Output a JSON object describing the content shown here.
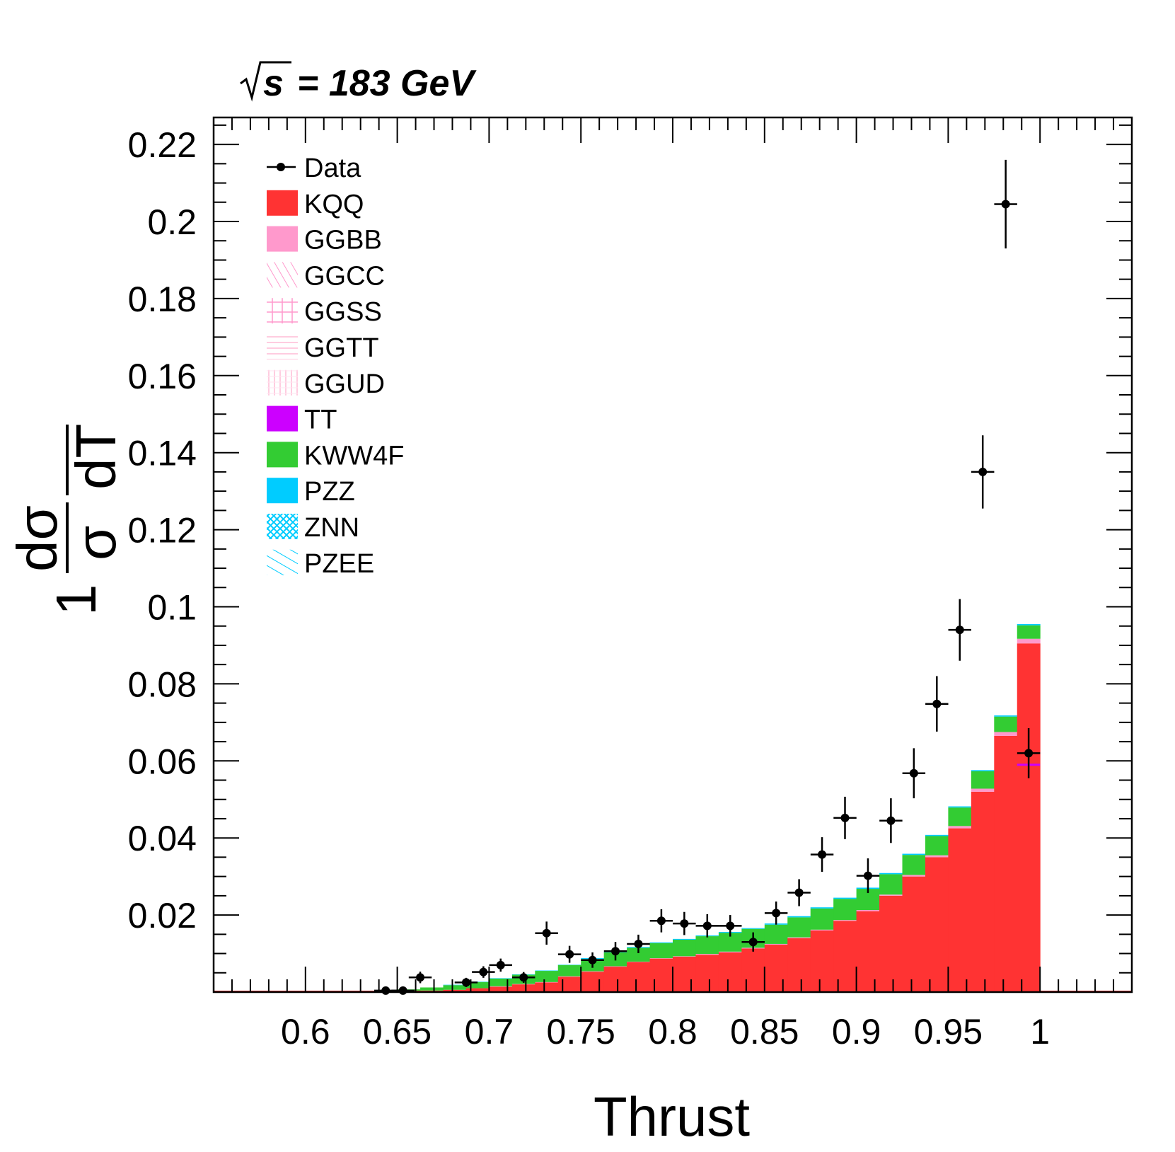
{
  "chart_data": {
    "type": "bar",
    "title": "= 183 GeV",
    "title_prefix": "√s",
    "xlabel": "Thrust",
    "ylabel_numerator": "1 dσ",
    "ylabel_one": "1",
    "ylabel_sigma": "σ",
    "ylabel_dsigma": "dσ",
    "ylabel_dT": "dT",
    "xlim": [
      0.55,
      1.05
    ],
    "ylim": [
      0,
      0.227
    ],
    "x_ticks": [
      {
        "value": 0.6,
        "label": "0.6"
      },
      {
        "value": 0.65,
        "label": "0.65"
      },
      {
        "value": 0.7,
        "label": "0.7"
      },
      {
        "value": 0.75,
        "label": "0.75"
      },
      {
        "value": 0.8,
        "label": "0.8"
      },
      {
        "value": 0.85,
        "label": "0.85"
      },
      {
        "value": 0.9,
        "label": "0.9"
      },
      {
        "value": 0.95,
        "label": "0.95"
      },
      {
        "value": 1.0,
        "label": "1"
      }
    ],
    "y_ticks": [
      {
        "value": 0.02,
        "label": "0.02"
      },
      {
        "value": 0.04,
        "label": "0.04"
      },
      {
        "value": 0.06,
        "label": "0.06"
      },
      {
        "value": 0.08,
        "label": "0.08"
      },
      {
        "value": 0.1,
        "label": "0.1"
      },
      {
        "value": 0.12,
        "label": "0.12"
      },
      {
        "value": 0.14,
        "label": "0.14"
      },
      {
        "value": 0.16,
        "label": "0.16"
      },
      {
        "value": 0.18,
        "label": "0.18"
      },
      {
        "value": 0.2,
        "label": "0.2"
      },
      {
        "value": 0.22,
        "label": "0.22"
      }
    ],
    "legend_position": "top-left",
    "legend": [
      {
        "name": "Data",
        "style": "marker",
        "color": "#000000"
      },
      {
        "name": "KQQ",
        "style": "fill",
        "color": "#ff3333"
      },
      {
        "name": "GGBB",
        "style": "fill",
        "color": "#ff99cc"
      },
      {
        "name": "GGCC",
        "style": "hatch-diag",
        "color": "#ff99cc"
      },
      {
        "name": "GGSS",
        "style": "hatch-cross",
        "color": "#ff99cc"
      },
      {
        "name": "GGTT",
        "style": "hatch-horiz",
        "color": "#ffcce0"
      },
      {
        "name": "GGUD",
        "style": "hatch-vert",
        "color": "#ffcce0"
      },
      {
        "name": "TT",
        "style": "fill",
        "color": "#cc00ff"
      },
      {
        "name": "KWW4F",
        "style": "fill",
        "color": "#33cc33"
      },
      {
        "name": "PZZ",
        "style": "fill",
        "color": "#00ccff"
      },
      {
        "name": "ZNN",
        "style": "hatch-xx",
        "color": "#00ccff"
      },
      {
        "name": "PZEE",
        "style": "hatch-diag",
        "color": "#00ccff"
      }
    ],
    "bins": [
      {
        "x0": 0.6,
        "x1": 0.6125,
        "kqq": 0.0,
        "other": 0.0
      },
      {
        "x0": 0.6125,
        "x1": 0.625,
        "kqq": 0.0,
        "other": 0.0
      },
      {
        "x0": 0.625,
        "x1": 0.6375,
        "kqq": 0.0001,
        "other": 0.0001
      },
      {
        "x0": 0.6375,
        "x1": 0.65,
        "kqq": 0.0001,
        "other": 0.0002
      },
      {
        "x0": 0.65,
        "x1": 0.6625,
        "kqq": 0.0002,
        "other": 0.0004
      },
      {
        "x0": 0.6625,
        "x1": 0.675,
        "kqq": 0.0004,
        "other": 0.0007
      },
      {
        "x0": 0.675,
        "x1": 0.6875,
        "kqq": 0.0006,
        "other": 0.001
      },
      {
        "x0": 0.6875,
        "x1": 0.7,
        "kqq": 0.001,
        "other": 0.0015
      },
      {
        "x0": 0.7,
        "x1": 0.7125,
        "kqq": 0.0015,
        "other": 0.002
      },
      {
        "x0": 0.7125,
        "x1": 0.725,
        "kqq": 0.002,
        "other": 0.0025
      },
      {
        "x0": 0.725,
        "x1": 0.7375,
        "kqq": 0.003,
        "other": 0.003
      },
      {
        "x0": 0.7375,
        "x1": 0.75,
        "kqq": 0.004,
        "other": 0.0035
      },
      {
        "x0": 0.75,
        "x1": 0.7625,
        "kqq": 0.005,
        "other": 0.004
      },
      {
        "x0": 0.7625,
        "x1": 0.775,
        "kqq": 0.006,
        "other": 0.0045
      },
      {
        "x0": 0.775,
        "x1": 0.7875,
        "kqq": 0.0075,
        "other": 0.004
      },
      {
        "x0": 0.7875,
        "x1": 0.8,
        "kqq": 0.008,
        "other": 0.0045
      },
      {
        "x0": 0.8,
        "x1": 0.8125,
        "kqq": 0.009,
        "other": 0.0045
      },
      {
        "x0": 0.8125,
        "x1": 0.825,
        "kqq": 0.0095,
        "other": 0.005
      },
      {
        "x0": 0.825,
        "x1": 0.8375,
        "kqq": 0.01,
        "other": 0.005
      },
      {
        "x0": 0.8375,
        "x1": 0.85,
        "kqq": 0.011,
        "other": 0.0045
      },
      {
        "x0": 0.85,
        "x1": 0.8625,
        "kqq": 0.012,
        "other": 0.0045
      },
      {
        "x0": 0.8625,
        "x1": 0.875,
        "kqq": 0.013,
        "other": 0.005
      },
      {
        "x0": 0.875,
        "x1": 0.8875,
        "kqq": 0.015,
        "other": 0.005
      },
      {
        "x0": 0.8875,
        "x1": 0.9,
        "kqq": 0.018,
        "other": 0.0045
      },
      {
        "x0": 0.9,
        "x1": 0.9125,
        "kqq": 0.021,
        "other": 0.0045
      },
      {
        "x0": 0.9125,
        "x1": 0.925,
        "kqq": 0.025,
        "other": 0.005
      },
      {
        "x0": 0.925,
        "x1": 0.9375,
        "kqq": 0.03,
        "other": 0.005
      },
      {
        "x0": 0.9375,
        "x1": 0.95,
        "kqq": 0.036,
        "other": 0.005
      },
      {
        "x0": 0.95,
        "x1": 0.9625,
        "kqq": 0.044,
        "other": 0.0045
      },
      {
        "x0": 0.9625,
        "x1": 0.975,
        "kqq": 0.054,
        "other": 0.0045
      },
      {
        "x0": 0.975,
        "x1": 0.9875,
        "kqq": 0.069,
        "other": 0.004
      },
      {
        "x0": 0.9875,
        "x1": 1.0,
        "kqq": 0.09,
        "other": 0.0035
      }
    ],
    "mc_bins": [
      {
        "x0": 0.6,
        "x1": 0.612,
        "kqq": 0.0,
        "kww": 0.0
      },
      {
        "x0": 0.612,
        "x1": 0.625,
        "kqq": 0.0,
        "kww": 0.0
      },
      {
        "x0": 0.625,
        "x1": 0.637,
        "kqq": 0.0,
        "kww": 0.0002
      },
      {
        "x0": 0.637,
        "x1": 0.65,
        "kqq": 0.0001,
        "kww": 0.0003
      },
      {
        "x0": 0.65,
        "x1": 0.662,
        "kqq": 0.0002,
        "kww": 0.0005
      },
      {
        "x0": 0.662,
        "x1": 0.675,
        "kqq": 0.0003,
        "kww": 0.0008
      },
      {
        "x0": 0.675,
        "x1": 0.687,
        "kqq": 0.0005,
        "kww": 0.0012
      },
      {
        "x0": 0.687,
        "x1": 0.7,
        "kqq": 0.0008,
        "kww": 0.0016
      },
      {
        "x0": 0.7,
        "x1": 0.712,
        "kqq": 0.0012,
        "kww": 0.002
      },
      {
        "x0": 0.712,
        "x1": 0.725,
        "kqq": 0.0018,
        "kww": 0.0025
      },
      {
        "x0": 0.725,
        "x1": 0.737,
        "kqq": 0.0025,
        "kww": 0.003
      },
      {
        "x0": 0.737,
        "x1": 0.75,
        "kqq": 0.004,
        "kww": 0.003
      },
      {
        "x0": 0.75,
        "x1": 0.762,
        "kqq": 0.0052,
        "kww": 0.0034
      },
      {
        "x0": 0.762,
        "x1": 0.775,
        "kqq": 0.0065,
        "kww": 0.0038
      },
      {
        "x0": 0.775,
        "x1": 0.787,
        "kqq": 0.008,
        "kww": 0.0035
      },
      {
        "x0": 0.787,
        "x1": 0.8,
        "kqq": 0.0085,
        "kww": 0.0038
      },
      {
        "x0": 0.8,
        "x1": 0.812,
        "kqq": 0.009,
        "kww": 0.0043
      },
      {
        "x0": 0.812,
        "x1": 0.825,
        "kqq": 0.0095,
        "kww": 0.0047
      },
      {
        "x0": 0.825,
        "x1": 0.837,
        "kqq": 0.01,
        "kww": 0.005
      },
      {
        "x0": 0.837,
        "x1": 0.85,
        "kqq": 0.011,
        "kww": 0.0048
      },
      {
        "x0": 0.85,
        "x1": 0.862,
        "kqq": 0.012,
        "kww": 0.005
      },
      {
        "x0": 0.862,
        "x1": 0.875,
        "kqq": 0.0135,
        "kww": 0.0055
      },
      {
        "x0": 0.875,
        "x1": 0.887,
        "kqq": 0.015,
        "kww": 0.0058
      },
      {
        "x0": 0.887,
        "x1": 0.9,
        "kqq": 0.0175,
        "kww": 0.0055
      },
      {
        "x0": 0.9,
        "x1": 0.912,
        "kqq": 0.0205,
        "kww": 0.0055
      },
      {
        "x0": 0.912,
        "x1": 0.925,
        "kqq": 0.0245,
        "kww": 0.0055
      },
      {
        "x0": 0.925,
        "x1": 0.937,
        "kqq": 0.0295,
        "kww": 0.0055
      },
      {
        "x0": 0.937,
        "x1": 0.95,
        "kqq": 0.0345,
        "kww": 0.0055
      },
      {
        "x0": 0.95,
        "x1": 0.962,
        "kqq": 0.042,
        "kww": 0.005
      },
      {
        "x0": 0.962,
        "x1": 0.975,
        "kqq": 0.052,
        "kww": 0.0048
      },
      {
        "x0": 0.975,
        "x1": 0.987,
        "kqq": 0.0665,
        "kww": 0.0043
      },
      {
        "x0": 0.987,
        "x1": 1.0,
        "kqq": 0.09,
        "kww": 0.0035
      }
    ]
  }
}
